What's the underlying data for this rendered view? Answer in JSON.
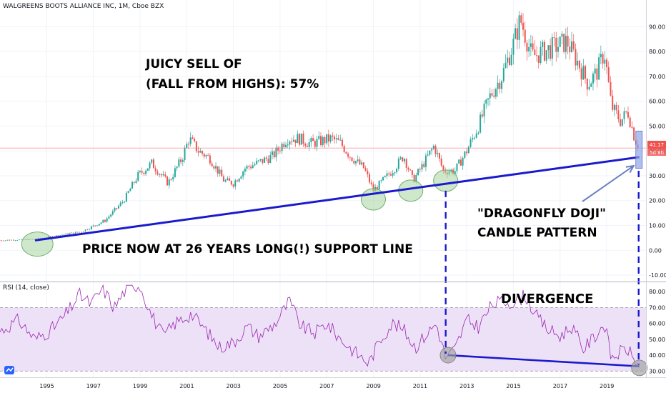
{
  "header": {
    "title": "WALGREENS BOOTS ALLIANCE INC, 1M, Cboe BZX"
  },
  "price_axis": {
    "ticks": [
      "90.00",
      "80.00",
      "70.00",
      "60.00",
      "50.00",
      "40.00",
      "30.00",
      "20.00",
      "10.00",
      "0.00",
      "-10.00"
    ],
    "last_price_tag": "41.17",
    "countdown_tag": "5d 8h"
  },
  "rsi_panel": {
    "label": "RSI (14, close)",
    "ticks": [
      "80.00",
      "70.00",
      "60.00",
      "50.00",
      "40.00",
      "30.00"
    ]
  },
  "time_axis": {
    "ticks": [
      "1995",
      "1997",
      "1999",
      "2001",
      "2003",
      "2005",
      "2007",
      "2009",
      "2011",
      "2013",
      "2015",
      "2017",
      "2019"
    ]
  },
  "annotations": {
    "sell_off_line1": "JUICY SELL OF",
    "sell_off_line2": "(FALL FROM HIGHS): 57%",
    "support_line": "PRICE NOW AT 26 YEARS LONG(!) SUPPORT LINE",
    "doji_line1": "\"DRAGONFLY DOJI\"",
    "doji_line2": "CANDLE PATTERN",
    "divergence": "DIVERGENCE"
  },
  "colors": {
    "up_candle": "#26a69a",
    "down_candle": "#ef5350",
    "rsi_line": "#9c27b0",
    "rsi_band": "#ede1f7",
    "trendline": "#1a1acc",
    "last_price": "#ef5350",
    "circle_fill": "#a8d5a2",
    "circle_stroke": "#6fae69",
    "gray_circle": "#9e9e9e",
    "current_bar_highlight": "#90a4e6"
  },
  "chart_data": [
    {
      "type": "candlestick",
      "title": "WALGREENS BOOTS ALLIANCE INC, 1M, Cboe BZX",
      "x_unit": "year",
      "ylim": [
        -12,
        97
      ],
      "last_price": 41.17,
      "support_line": {
        "from": [
          1994.5,
          4
        ],
        "to": [
          2020.4,
          37.5
        ]
      },
      "highlights": [
        {
          "x": 1994.6,
          "y": 2.5
        },
        {
          "x": 2009.0,
          "y": 20.5
        },
        {
          "x": 2010.6,
          "y": 24
        },
        {
          "x": 2012.1,
          "y": 28
        }
      ],
      "anchors": [
        [
          1993.0,
          4
        ],
        [
          1994.5,
          4.5
        ],
        [
          1995.5,
          6
        ],
        [
          1996.5,
          7.5
        ],
        [
          1997.5,
          12
        ],
        [
          1998.3,
          20
        ],
        [
          1998.9,
          30
        ],
        [
          1999.5,
          35
        ],
        [
          2000.2,
          27
        ],
        [
          2000.8,
          37
        ],
        [
          2001.1,
          45
        ],
        [
          2001.5,
          40
        ],
        [
          2002.0,
          37
        ],
        [
          2002.6,
          28
        ],
        [
          2003.0,
          27
        ],
        [
          2003.5,
          33
        ],
        [
          2004.0,
          35
        ],
        [
          2004.7,
          38
        ],
        [
          2005.3,
          45
        ],
        [
          2005.8,
          45
        ],
        [
          2006.3,
          43
        ],
        [
          2006.8,
          44
        ],
        [
          2007.2,
          45
        ],
        [
          2007.6,
          43
        ],
        [
          2008.0,
          38
        ],
        [
          2008.6,
          33
        ],
        [
          2009.0,
          24
        ],
        [
          2009.4,
          28
        ],
        [
          2009.9,
          33
        ],
        [
          2010.3,
          38
        ],
        [
          2010.7,
          28
        ],
        [
          2011.1,
          34
        ],
        [
          2011.6,
          42
        ],
        [
          2012.0,
          32
        ],
        [
          2012.5,
          32
        ],
        [
          2013.0,
          40
        ],
        [
          2013.5,
          50
        ],
        [
          2014.0,
          62
        ],
        [
          2014.5,
          70
        ],
        [
          2015.0,
          83
        ],
        [
          2015.3,
          93
        ],
        [
          2015.8,
          78
        ],
        [
          2016.3,
          80
        ],
        [
          2016.8,
          82
        ],
        [
          2017.3,
          84
        ],
        [
          2017.8,
          75
        ],
        [
          2018.2,
          67
        ],
        [
          2018.6,
          72
        ],
        [
          2018.9,
          80
        ],
        [
          2019.2,
          58
        ],
        [
          2019.6,
          52
        ],
        [
          2019.9,
          56
        ],
        [
          2020.2,
          45
        ],
        [
          2020.4,
          41.17
        ]
      ]
    },
    {
      "type": "line",
      "title": "RSI (14, close)",
      "ylim": [
        27,
        85
      ],
      "bands": [
        30,
        70
      ],
      "divergence_line": {
        "from": [
          2012.2,
          40
        ],
        "to": [
          2020.4,
          33
        ]
      },
      "anchors": [
        [
          1993.0,
          55
        ],
        [
          1993.8,
          62
        ],
        [
          1994.5,
          50
        ],
        [
          1995.2,
          56
        ],
        [
          1995.8,
          65
        ],
        [
          1996.4,
          78
        ],
        [
          1996.9,
          72
        ],
        [
          1997.4,
          82
        ],
        [
          1997.9,
          70
        ],
        [
          1998.5,
          84
        ],
        [
          1999.0,
          84
        ],
        [
          1999.5,
          65
        ],
        [
          2000.0,
          52
        ],
        [
          2000.5,
          60
        ],
        [
          2001.2,
          66
        ],
        [
          2001.8,
          56
        ],
        [
          2002.4,
          45
        ],
        [
          2003.0,
          48
        ],
        [
          2003.6,
          58
        ],
        [
          2004.1,
          52
        ],
        [
          2004.8,
          60
        ],
        [
          2005.4,
          74
        ],
        [
          2005.9,
          58
        ],
        [
          2006.5,
          54
        ],
        [
          2007.0,
          60
        ],
        [
          2007.6,
          50
        ],
        [
          2008.2,
          42
        ],
        [
          2008.8,
          35
        ],
        [
          2009.3,
          50
        ],
        [
          2009.8,
          60
        ],
        [
          2010.3,
          56
        ],
        [
          2010.8,
          45
        ],
        [
          2011.2,
          52
        ],
        [
          2011.7,
          60
        ],
        [
          2012.1,
          38
        ],
        [
          2012.5,
          44
        ],
        [
          2013.0,
          62
        ],
        [
          2013.5,
          58
        ],
        [
          2014.1,
          72
        ],
        [
          2014.6,
          74
        ],
        [
          2015.1,
          73
        ],
        [
          2015.5,
          78
        ],
        [
          2016.0,
          64
        ],
        [
          2016.5,
          56
        ],
        [
          2017.0,
          52
        ],
        [
          2017.5,
          58
        ],
        [
          2018.0,
          44
        ],
        [
          2018.5,
          52
        ],
        [
          2018.9,
          60
        ],
        [
          2019.2,
          38
        ],
        [
          2019.6,
          42
        ],
        [
          2019.9,
          44
        ],
        [
          2020.2,
          36
        ],
        [
          2020.4,
          37
        ]
      ]
    }
  ]
}
